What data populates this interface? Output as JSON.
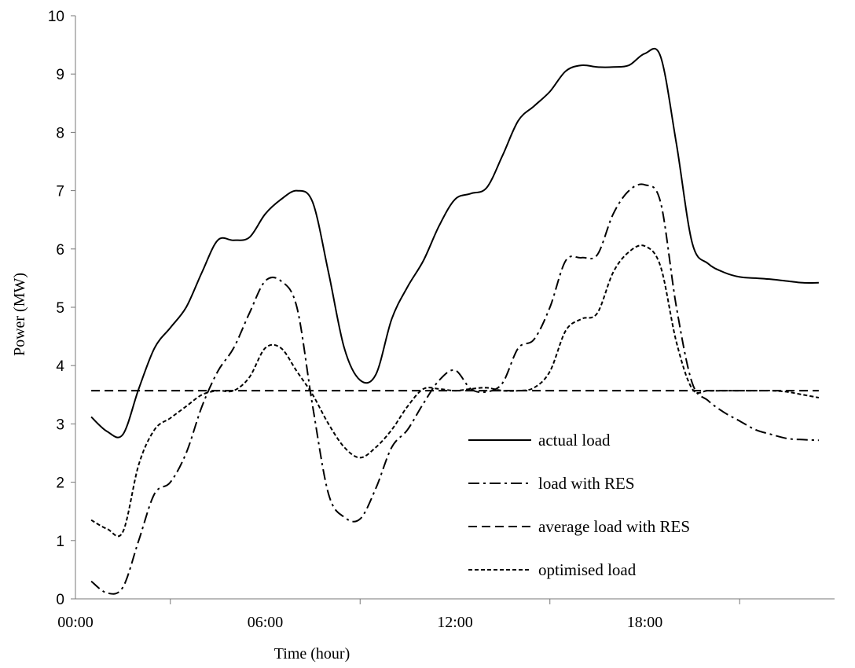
{
  "chart_data": {
    "type": "line",
    "xlabel": "Time (hour)",
    "ylabel": "Power (MW)",
    "xlim": [
      0,
      24
    ],
    "ylim": [
      0,
      10
    ],
    "x_ticks": [
      0,
      6,
      12,
      18
    ],
    "x_tick_labels": [
      "00:00",
      "06:00",
      "12:00",
      "18:00"
    ],
    "x_minor_ticks": [
      3,
      9,
      15,
      21
    ],
    "y_ticks": [
      0,
      1,
      2,
      3,
      4,
      5,
      6,
      7,
      8,
      9,
      10
    ],
    "grid": false,
    "legend_position": "lower-right",
    "series": [
      {
        "name": "actual load",
        "style": "solid",
        "x": [
          0.5,
          1,
          1.5,
          2,
          2.5,
          3,
          3.5,
          4,
          4.5,
          5,
          5.5,
          6,
          6.5,
          7,
          7.5,
          8,
          8.5,
          9,
          9.5,
          10,
          10.5,
          11,
          11.5,
          12,
          12.5,
          13,
          13.5,
          14,
          14.5,
          15,
          15.5,
          16,
          16.5,
          17,
          17.5,
          18,
          18.5,
          19,
          19.5,
          20,
          20.5,
          21,
          21.5,
          22,
          22.5,
          23,
          23.5
        ],
        "values": [
          3.12,
          2.87,
          2.82,
          3.6,
          4.3,
          4.65,
          5.0,
          5.6,
          6.15,
          6.15,
          6.2,
          6.6,
          6.85,
          7.0,
          6.8,
          5.6,
          4.3,
          3.75,
          3.85,
          4.8,
          5.35,
          5.8,
          6.4,
          6.85,
          6.95,
          7.05,
          7.6,
          8.2,
          8.45,
          8.7,
          9.05,
          9.15,
          9.12,
          9.12,
          9.15,
          9.35,
          9.3,
          7.8,
          6.1,
          5.75,
          5.6,
          5.52,
          5.5,
          5.48,
          5.45,
          5.42,
          5.42
        ]
      },
      {
        "name": "load with RES",
        "style": "dash-dot",
        "x": [
          0.5,
          1,
          1.5,
          2,
          2.5,
          3,
          3.5,
          4,
          4.5,
          5,
          5.5,
          6,
          6.5,
          7,
          7.5,
          8,
          8.5,
          9,
          9.5,
          10,
          10.5,
          11,
          11.5,
          12,
          12.5,
          13,
          13.5,
          14,
          14.5,
          15,
          15.5,
          16,
          16.5,
          17,
          17.5,
          18,
          18.5,
          19,
          19.5,
          20,
          20.5,
          21,
          21.5,
          22,
          22.5,
          23,
          23.5
        ],
        "values": [
          0.3,
          0.1,
          0.2,
          1.0,
          1.8,
          2.0,
          2.5,
          3.3,
          3.9,
          4.3,
          4.9,
          5.45,
          5.45,
          5.0,
          3.3,
          1.8,
          1.4,
          1.37,
          1.9,
          2.6,
          2.9,
          3.35,
          3.75,
          3.92,
          3.6,
          3.55,
          3.7,
          4.3,
          4.45,
          5.0,
          5.8,
          5.85,
          5.9,
          6.6,
          7.0,
          7.1,
          6.8,
          5.0,
          3.7,
          3.4,
          3.2,
          3.05,
          2.9,
          2.82,
          2.75,
          2.73,
          2.72
        ]
      },
      {
        "name": "average load with RES",
        "style": "dashed",
        "x": [
          0.5,
          23.5
        ],
        "values": [
          3.57,
          3.57
        ]
      },
      {
        "name": "optimised load",
        "style": "short-dashed",
        "x": [
          0.5,
          1,
          1.5,
          2,
          2.5,
          3,
          3.5,
          4,
          4.5,
          5,
          5.5,
          6,
          6.5,
          7,
          7.5,
          8,
          8.5,
          9,
          9.5,
          10,
          10.5,
          11,
          11.5,
          12,
          12.5,
          13,
          13.5,
          14,
          14.5,
          15,
          15.5,
          16,
          16.5,
          17,
          17.5,
          18,
          18.5,
          19,
          19.5,
          20,
          20.5,
          21,
          21.5,
          22,
          22.5,
          23,
          23.5
        ],
        "values": [
          1.35,
          1.2,
          1.15,
          2.3,
          2.9,
          3.1,
          3.3,
          3.5,
          3.57,
          3.57,
          3.8,
          4.3,
          4.3,
          3.9,
          3.5,
          3.0,
          2.6,
          2.42,
          2.6,
          2.9,
          3.3,
          3.6,
          3.6,
          3.57,
          3.6,
          3.62,
          3.57,
          3.57,
          3.62,
          3.9,
          4.6,
          4.8,
          4.9,
          5.6,
          5.95,
          6.05,
          5.7,
          4.4,
          3.6,
          3.57,
          3.57,
          3.57,
          3.57,
          3.57,
          3.55,
          3.5,
          3.45
        ]
      }
    ]
  }
}
